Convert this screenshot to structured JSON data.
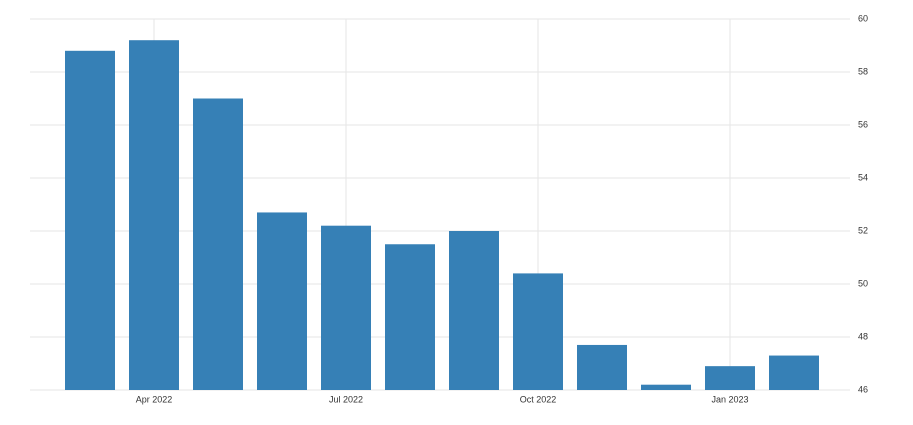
{
  "chart_data": {
    "type": "bar",
    "categories": [
      null,
      "Apr 2022",
      null,
      null,
      "Jul 2022",
      null,
      null,
      "Oct 2022",
      null,
      null,
      "Jan 2023",
      null
    ],
    "values": [
      58.8,
      59.2,
      57.0,
      52.7,
      52.2,
      51.5,
      52.0,
      50.4,
      47.7,
      46.2,
      46.9,
      47.3
    ],
    "color": "#3680b6",
    "ylim": [
      46,
      60
    ],
    "yticks": [
      46,
      48,
      50,
      52,
      54,
      56,
      58,
      60
    ],
    "grid": true
  }
}
